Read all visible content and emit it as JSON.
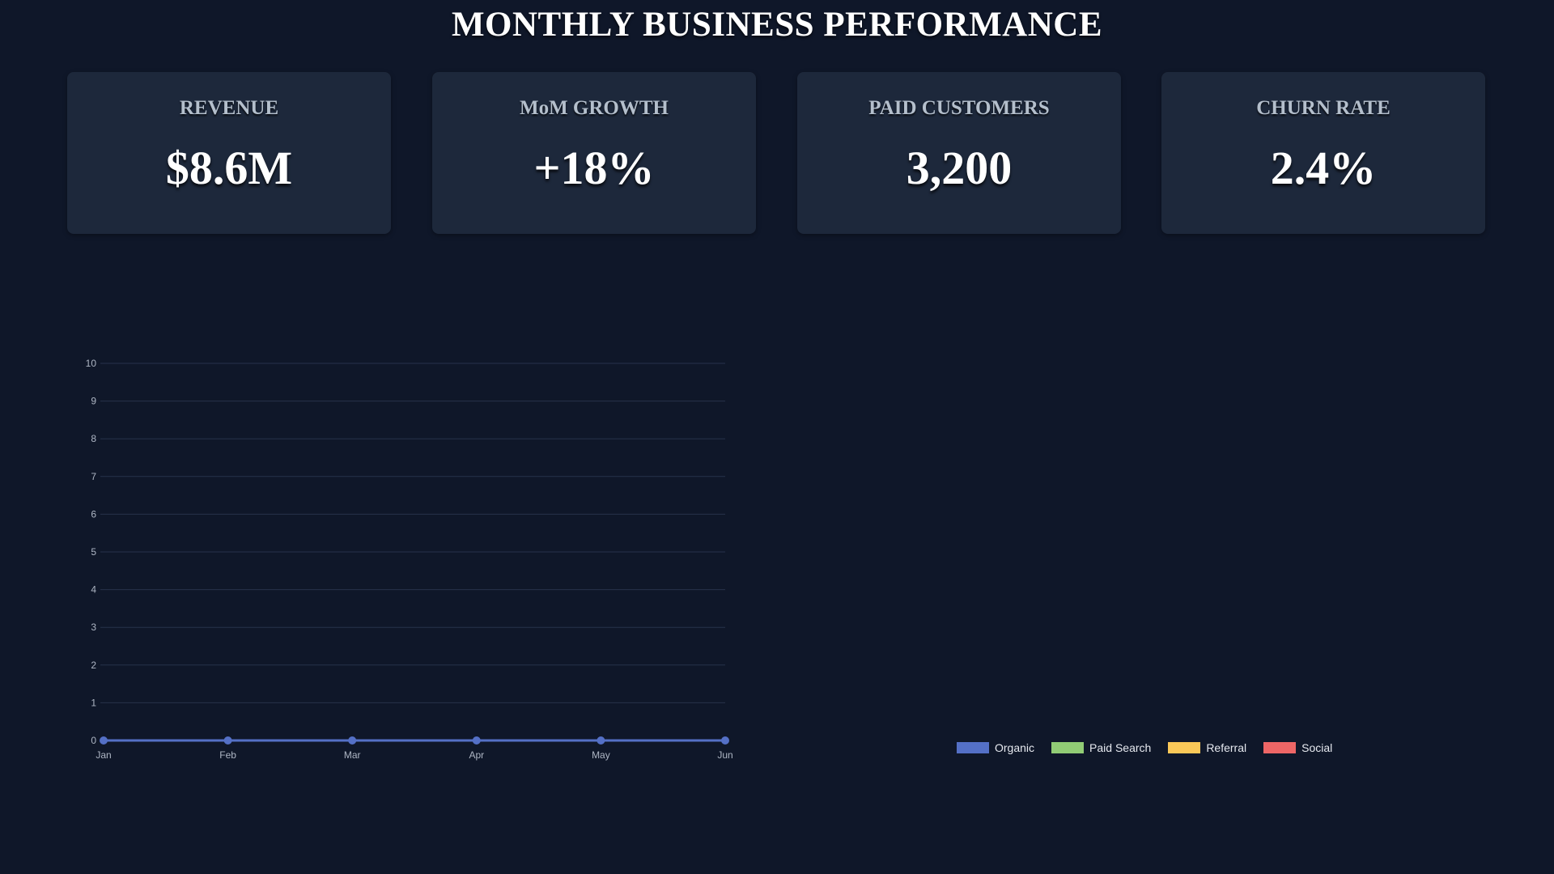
{
  "title": "MONTHLY BUSINESS PERFORMANCE",
  "kpis": [
    {
      "label": "REVENUE",
      "value": "$8.6M"
    },
    {
      "label": "MoM GROWTH",
      "value": "+18%"
    },
    {
      "label": "PAID CUSTOMERS",
      "value": "3,200"
    },
    {
      "label": "CHURN RATE",
      "value": "2.4%"
    }
  ],
  "chart_data": [
    {
      "type": "line",
      "x": [
        "Jan",
        "Feb",
        "Mar",
        "Apr",
        "May",
        "Jun"
      ],
      "series": [
        {
          "values": [
            0,
            0,
            0,
            0,
            0,
            0
          ],
          "color": "#5470c6"
        }
      ],
      "ylim": [
        0,
        10
      ],
      "yticks": [
        "0",
        "1",
        "2",
        "3",
        "4",
        "5",
        "6",
        "7",
        "8",
        "9",
        "10"
      ],
      "grid": true
    },
    {
      "type": "pie",
      "categories": [
        "Organic",
        "Paid Search",
        "Referral",
        "Social"
      ],
      "colors": [
        "#5470c6",
        "#91cc75",
        "#fac858",
        "#ee6666"
      ],
      "legend_position": "bottom"
    }
  ],
  "legend": [
    {
      "label": "Organic",
      "color": "#5470c6"
    },
    {
      "label": "Paid Search",
      "color": "#91cc75"
    },
    {
      "label": "Referral",
      "color": "#fac858"
    },
    {
      "label": "Social",
      "color": "#ee6666"
    }
  ]
}
